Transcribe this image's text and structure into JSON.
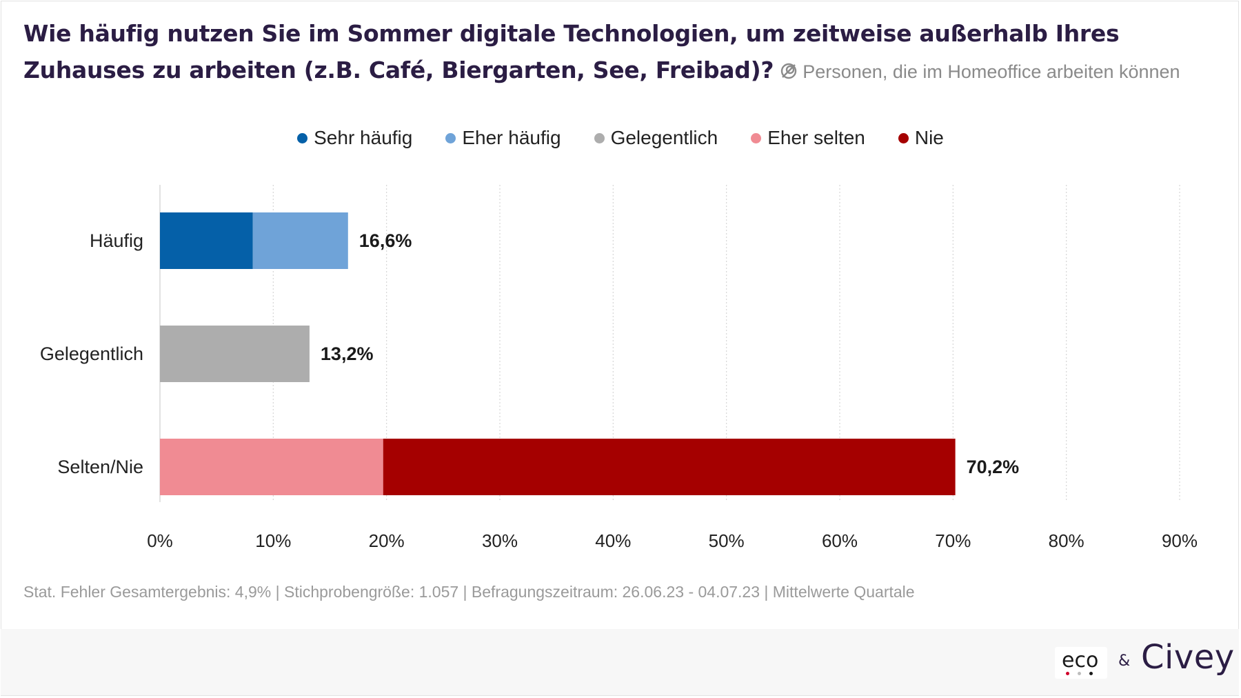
{
  "title": "Wie häufig nutzen Sie im Sommer digitale Technologien, um zeitweise außerhalb Ihres Zuhauses zu arbeiten (z.B. Café, Biergarten, See, Freibad)?",
  "subtitle": "Personen, die im Homeoffice arbeiten können",
  "footer": "Stat. Fehler Gesamtergebnis: 4,9% | Stichprobengröße: 1.057 | Befragungszeitraum: 26.06.23 - 04.07.23 | Mittelwerte Quartale",
  "branding": {
    "logo_left": "eco",
    "ampersand": "&",
    "logo_right": "Civey"
  },
  "colors": {
    "sehr_haeufig": "#0560a8",
    "eher_haeufig": "#6fa3d8",
    "gelegentlich": "#adadad",
    "eher_selten": "#f08b93",
    "nie": "#a50000"
  },
  "legend": [
    {
      "label": "Sehr häufig",
      "color": "#0560a8"
    },
    {
      "label": "Eher häufig",
      "color": "#6fa3d8"
    },
    {
      "label": "Gelegentlich",
      "color": "#adadad"
    },
    {
      "label": "Eher selten",
      "color": "#f08b93"
    },
    {
      "label": "Nie",
      "color": "#a50000"
    }
  ],
  "chart_data": {
    "type": "bar",
    "orientation": "horizontal",
    "stacked": true,
    "categories": [
      "Häufig",
      "Gelegentlich",
      "Selten/Nie"
    ],
    "series": [
      {
        "name": "Sehr häufig",
        "values": [
          8.2,
          0,
          0
        ]
      },
      {
        "name": "Eher häufig",
        "values": [
          8.4,
          0,
          0
        ]
      },
      {
        "name": "Gelegentlich",
        "values": [
          0,
          13.2,
          0
        ]
      },
      {
        "name": "Eher selten",
        "values": [
          0,
          0,
          19.7
        ]
      },
      {
        "name": "Nie",
        "values": [
          0,
          0,
          50.5
        ]
      }
    ],
    "totals": [
      16.6,
      13.2,
      70.2
    ],
    "total_labels": [
      "16,6%",
      "13,2%",
      "70,2%"
    ],
    "xlim": [
      0,
      90
    ],
    "x_ticks": [
      0,
      10,
      20,
      30,
      40,
      50,
      60,
      70,
      80,
      90
    ],
    "x_tick_labels": [
      "0%",
      "10%",
      "20%",
      "30%",
      "40%",
      "50%",
      "60%",
      "70%",
      "80%",
      "90%"
    ],
    "grid": "vertical dotted",
    "legend_position": "top-center"
  }
}
